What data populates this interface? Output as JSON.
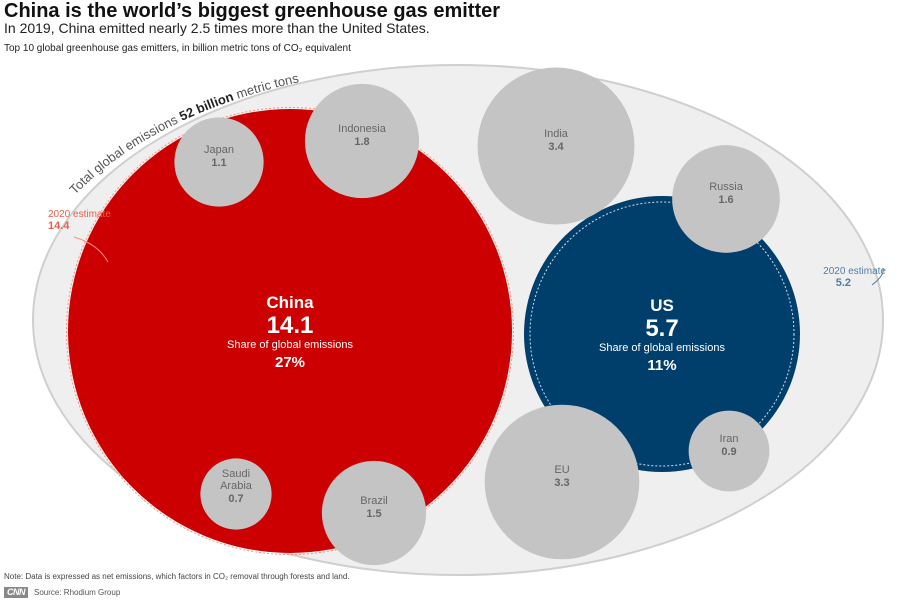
{
  "header": {
    "title": "China is the world’s biggest greenhouse gas emitter",
    "subtitle": "In 2019, China emitted nearly 2.5 times more than the United States.",
    "kicker": "Top 10 global greenhouse gas emitters, in billion metric tons of CO₂ equivalent"
  },
  "chart_data": {
    "type": "bubble",
    "total_label": {
      "prefix": "Total global emissions",
      "value": "52 billion",
      "suffix": "metric tons"
    },
    "bubbles": [
      {
        "name": "China",
        "value": 14.1,
        "value_label": "14.1",
        "share_label": "Share of global emissions",
        "share": "27%",
        "estimate_label": "2020 estimate",
        "estimate": "14.4",
        "color": "#cc0000",
        "highlight": true
      },
      {
        "name": "US",
        "value": 5.7,
        "value_label": "5.7",
        "share_label": "Share of global emissions",
        "share": "11%",
        "estimate_label": "2020 estimate",
        "estimate": "5.2",
        "color": "#003f6b",
        "highlight": true
      },
      {
        "name": "India",
        "value": 3.4,
        "value_label": "3.4",
        "color": "#c4c4c4"
      },
      {
        "name": "EU",
        "value": 3.3,
        "value_label": "3.3",
        "color": "#c4c4c4"
      },
      {
        "name": "Indonesia",
        "value": 1.8,
        "value_label": "1.8",
        "color": "#c4c4c4"
      },
      {
        "name": "Russia",
        "value": 1.6,
        "value_label": "1.6",
        "color": "#c4c4c4"
      },
      {
        "name": "Brazil",
        "value": 1.5,
        "value_label": "1.5",
        "color": "#c4c4c4"
      },
      {
        "name": "Japan",
        "value": 1.1,
        "value_label": "1.1",
        "color": "#c4c4c4"
      },
      {
        "name": "Iran",
        "value": 0.9,
        "value_label": "0.9",
        "color": "#c4c4c4"
      },
      {
        "name": "Saudi Arabia",
        "value": 0.7,
        "value_label": "0.7",
        "color": "#c4c4c4"
      }
    ]
  },
  "footer": {
    "note": "Note: Data is expressed as net emissions, which factors in CO₂ removal through forests and land.",
    "logo": "CNN",
    "source": "Source: Rhodium Group"
  },
  "colors": {
    "outer_fill": "#efefef",
    "outer_stroke": "#cfcfcf",
    "china_estimate_text": "#e8604c",
    "us_estimate_text": "#4f7fa8",
    "gray_text": "#666666"
  }
}
